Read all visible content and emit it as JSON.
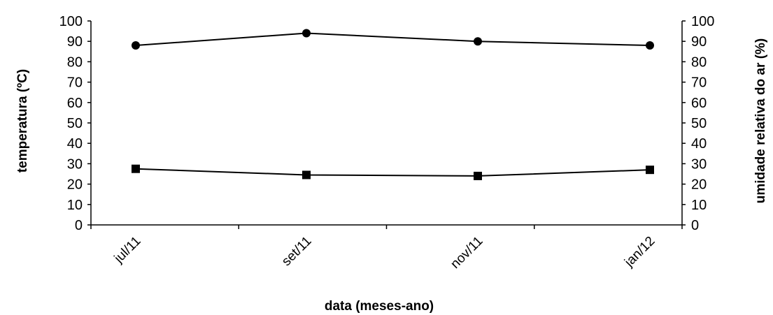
{
  "chart_data": {
    "type": "line",
    "categories": [
      "jul/11",
      "set/11",
      "nov/11",
      "jan/12"
    ],
    "series": [
      {
        "values": [
          88,
          94,
          90,
          88
        ],
        "marker": "circle",
        "axis": "right"
      },
      {
        "values": [
          27.5,
          24.5,
          24,
          27
        ],
        "marker": "square",
        "axis": "left"
      }
    ],
    "xlabel": "data (meses-ano)",
    "ylabel": "temperatura (ºC)",
    "y2label": "umidade relativa do ar (%)",
    "ylim": [
      0,
      100
    ],
    "y2lim": [
      0,
      100
    ],
    "yticks": [
      0,
      10,
      20,
      30,
      40,
      50,
      60,
      70,
      80,
      90,
      100
    ],
    "y2ticks": [
      0,
      10,
      20,
      30,
      40,
      50,
      60,
      70,
      80,
      90,
      100
    ],
    "grid": false,
    "legend": "none",
    "colors": {
      "line": "#000000",
      "marker": "#000000"
    }
  }
}
